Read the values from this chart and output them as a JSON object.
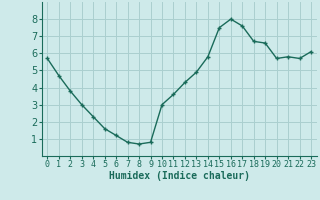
{
  "x": [
    0,
    1,
    2,
    3,
    4,
    5,
    6,
    7,
    8,
    9,
    10,
    11,
    12,
    13,
    14,
    15,
    16,
    17,
    18,
    19,
    20,
    21,
    22,
    23
  ],
  "y": [
    5.7,
    4.7,
    3.8,
    3.0,
    2.3,
    1.6,
    1.2,
    0.8,
    0.7,
    0.8,
    3.0,
    3.6,
    4.3,
    4.9,
    5.8,
    7.5,
    8.0,
    7.6,
    6.7,
    6.6,
    5.7,
    5.8,
    5.7,
    6.1
  ],
  "line_color": "#1a6b5a",
  "marker": "+",
  "marker_size": 3,
  "line_width": 1.0,
  "bg_color": "#ceeaea",
  "grid_color": "#aacfcf",
  "xlabel": "Humidex (Indice chaleur)",
  "xlabel_fontsize": 7,
  "tick_fontsize": 6,
  "xlim": [
    -0.5,
    23.5
  ],
  "ylim": [
    0,
    9
  ],
  "yticks": [
    1,
    2,
    3,
    4,
    5,
    6,
    7,
    8
  ],
  "xticks": [
    0,
    1,
    2,
    3,
    4,
    5,
    6,
    7,
    8,
    9,
    10,
    11,
    12,
    13,
    14,
    15,
    16,
    17,
    18,
    19,
    20,
    21,
    22,
    23
  ],
  "spine_color": "#1a6b5a",
  "text_color": "#1a6b5a"
}
